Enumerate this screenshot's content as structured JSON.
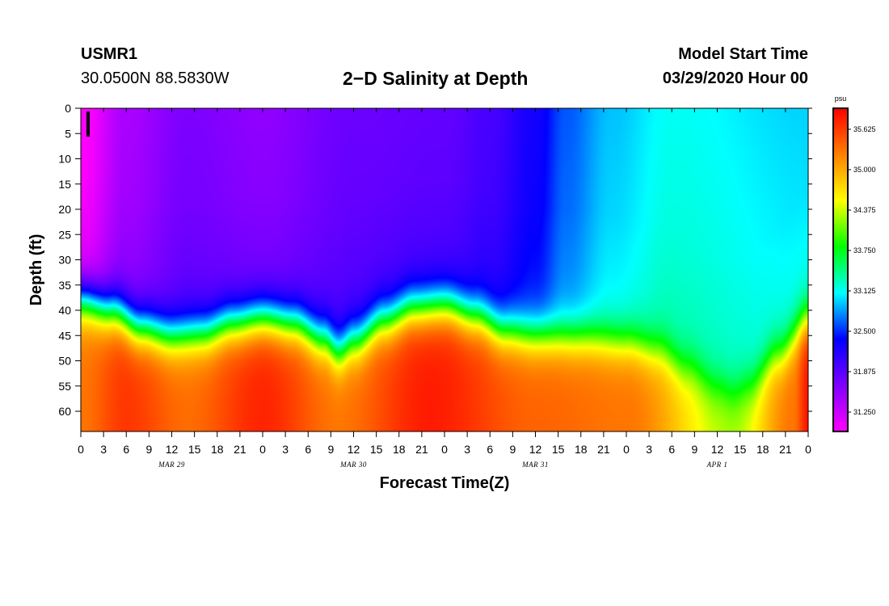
{
  "header": {
    "station": "USMR1",
    "coords": "30.0500N 88.5830W",
    "title": "2−D Salinity at Depth",
    "start_label": "Model Start Time",
    "start_value": "03/29/2020 Hour 00"
  },
  "chart_data": {
    "type": "heatmap",
    "title": "2−D Salinity at Depth",
    "xlabel": "Forecast Time(Z)",
    "ylabel": "Depth (ft)",
    "x_ticks": [
      "0",
      "3",
      "6",
      "9",
      "12",
      "15",
      "18",
      "21",
      "0",
      "3",
      "6",
      "9",
      "12",
      "15",
      "18",
      "21",
      "0",
      "3",
      "6",
      "9",
      "12",
      "15",
      "18",
      "21",
      "0",
      "3",
      "6",
      "9",
      "12",
      "15",
      "18",
      "21",
      "0"
    ],
    "x_range_hours": [
      0,
      96
    ],
    "date_labels": [
      {
        "label": "MAR 29",
        "hour": 12
      },
      {
        "label": "MAR 30",
        "hour": 36
      },
      {
        "label": "MAR 31",
        "hour": 60
      },
      {
        "label": "APR 1",
        "hour": 84
      }
    ],
    "y_ticks": [
      "0",
      "5",
      "10",
      "15",
      "20",
      "25",
      "30",
      "35",
      "40",
      "45",
      "50",
      "55",
      "60"
    ],
    "y_range_ft": [
      0,
      64
    ],
    "colorbar": {
      "unit": "psu",
      "ticks": [
        "31.250",
        "31.875",
        "32.500",
        "33.125",
        "33.750",
        "34.375",
        "35.000",
        "35.625"
      ],
      "range": [
        30.95,
        35.95
      ],
      "colors": [
        "#ff00ff",
        "#7f00ff",
        "#0000ff",
        "#00ffff",
        "#00ff00",
        "#ffff00",
        "#ff8000",
        "#ff0000"
      ]
    },
    "halocline_depth_ft": [
      {
        "hour": 0,
        "depth": 38
      },
      {
        "hour": 4,
        "depth": 40
      },
      {
        "hour": 8,
        "depth": 43.5
      },
      {
        "hour": 12,
        "depth": 45
      },
      {
        "hour": 16,
        "depth": 44.5
      },
      {
        "hour": 20,
        "depth": 42.5
      },
      {
        "hour": 24,
        "depth": 41.5
      },
      {
        "hour": 28,
        "depth": 42.5
      },
      {
        "hour": 32,
        "depth": 45.5
      },
      {
        "hour": 34,
        "depth": 48
      },
      {
        "hour": 36,
        "depth": 46
      },
      {
        "hour": 40,
        "depth": 42
      },
      {
        "hour": 44,
        "depth": 39.5
      },
      {
        "hour": 48,
        "depth": 39
      },
      {
        "hour": 52,
        "depth": 41
      },
      {
        "hour": 56,
        "depth": 44
      },
      {
        "hour": 60,
        "depth": 45
      },
      {
        "hour": 66,
        "depth": 45.5
      },
      {
        "hour": 72,
        "depth": 46.5
      },
      {
        "hour": 76,
        "depth": 48
      },
      {
        "hour": 80,
        "depth": 51.5
      },
      {
        "hour": 84,
        "depth": 55
      },
      {
        "hour": 86,
        "depth": 56
      },
      {
        "hour": 88,
        "depth": 55
      },
      {
        "hour": 92,
        "depth": 49
      },
      {
        "hour": 96,
        "depth": 42
      }
    ],
    "surface_salinity_psu": [
      {
        "hour": 0,
        "value": 31.1
      },
      {
        "hour": 6,
        "value": 31.6
      },
      {
        "hour": 14,
        "value": 31.85
      },
      {
        "hour": 24,
        "value": 31.75
      },
      {
        "hour": 36,
        "value": 31.95
      },
      {
        "hour": 48,
        "value": 32.0
      },
      {
        "hour": 54,
        "value": 32.15
      },
      {
        "hour": 60,
        "value": 32.45
      },
      {
        "hour": 64,
        "value": 32.8
      },
      {
        "hour": 70,
        "value": 33.1
      },
      {
        "hour": 78,
        "value": 33.3
      },
      {
        "hour": 96,
        "value": 33.15
      }
    ],
    "bottom_salinity_psu": [
      {
        "hour": 0,
        "value": 35.3
      },
      {
        "hour": 6,
        "value": 35.65
      },
      {
        "hour": 14,
        "value": 35.35
      },
      {
        "hour": 24,
        "value": 35.75
      },
      {
        "hour": 34,
        "value": 35.3
      },
      {
        "hour": 46,
        "value": 35.8
      },
      {
        "hour": 60,
        "value": 35.4
      },
      {
        "hour": 72,
        "value": 35.3
      },
      {
        "hour": 86,
        "value": 34.3
      },
      {
        "hour": 94,
        "value": 35.3
      },
      {
        "hour": 96,
        "value": 35.85
      }
    ]
  }
}
